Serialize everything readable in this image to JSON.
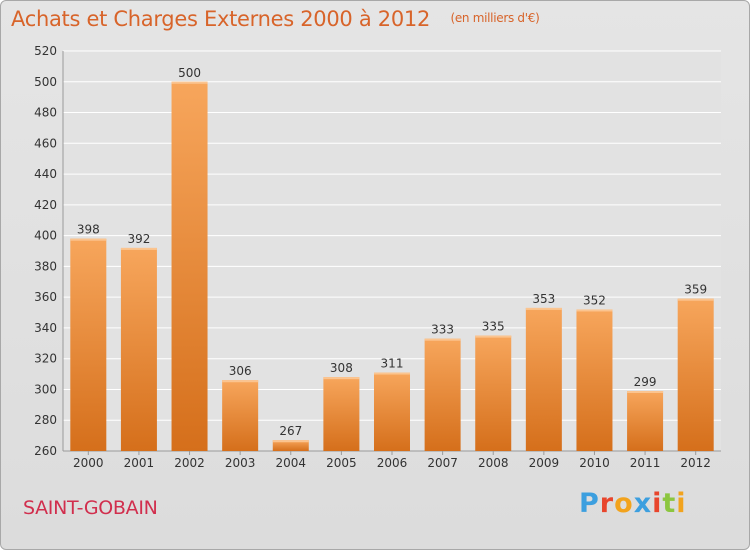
{
  "header": {
    "title": "Achats et Charges Externes 2000 à 2012",
    "subtitle": "(en milliers d'€)"
  },
  "footer": {
    "commune": "SAINT-GOBAIN",
    "logo_text": "Proxiti"
  },
  "colors": {
    "bar_top": "#f7a65c",
    "bar_bottom": "#d56f1b",
    "title": "#d8642a",
    "commune": "#d12e4d",
    "logo": [
      "#3c9fdf",
      "#e8452c",
      "#f2a31d",
      "#3c9fdf",
      "#e8452c",
      "#8cc63f",
      "#f2a31d"
    ]
  },
  "chart_data": {
    "type": "bar",
    "categories": [
      "2000",
      "2001",
      "2002",
      "2003",
      "2004",
      "2005",
      "2006",
      "2007",
      "2008",
      "2009",
      "2010",
      "2011",
      "2012"
    ],
    "values": [
      398,
      392,
      500,
      306,
      267,
      308,
      311,
      333,
      335,
      353,
      352,
      299,
      359
    ],
    "ylim": [
      260,
      520
    ],
    "yticks": [
      260,
      280,
      300,
      320,
      340,
      360,
      380,
      400,
      420,
      440,
      460,
      480,
      500,
      520
    ],
    "grid": true,
    "data_labels": true
  }
}
